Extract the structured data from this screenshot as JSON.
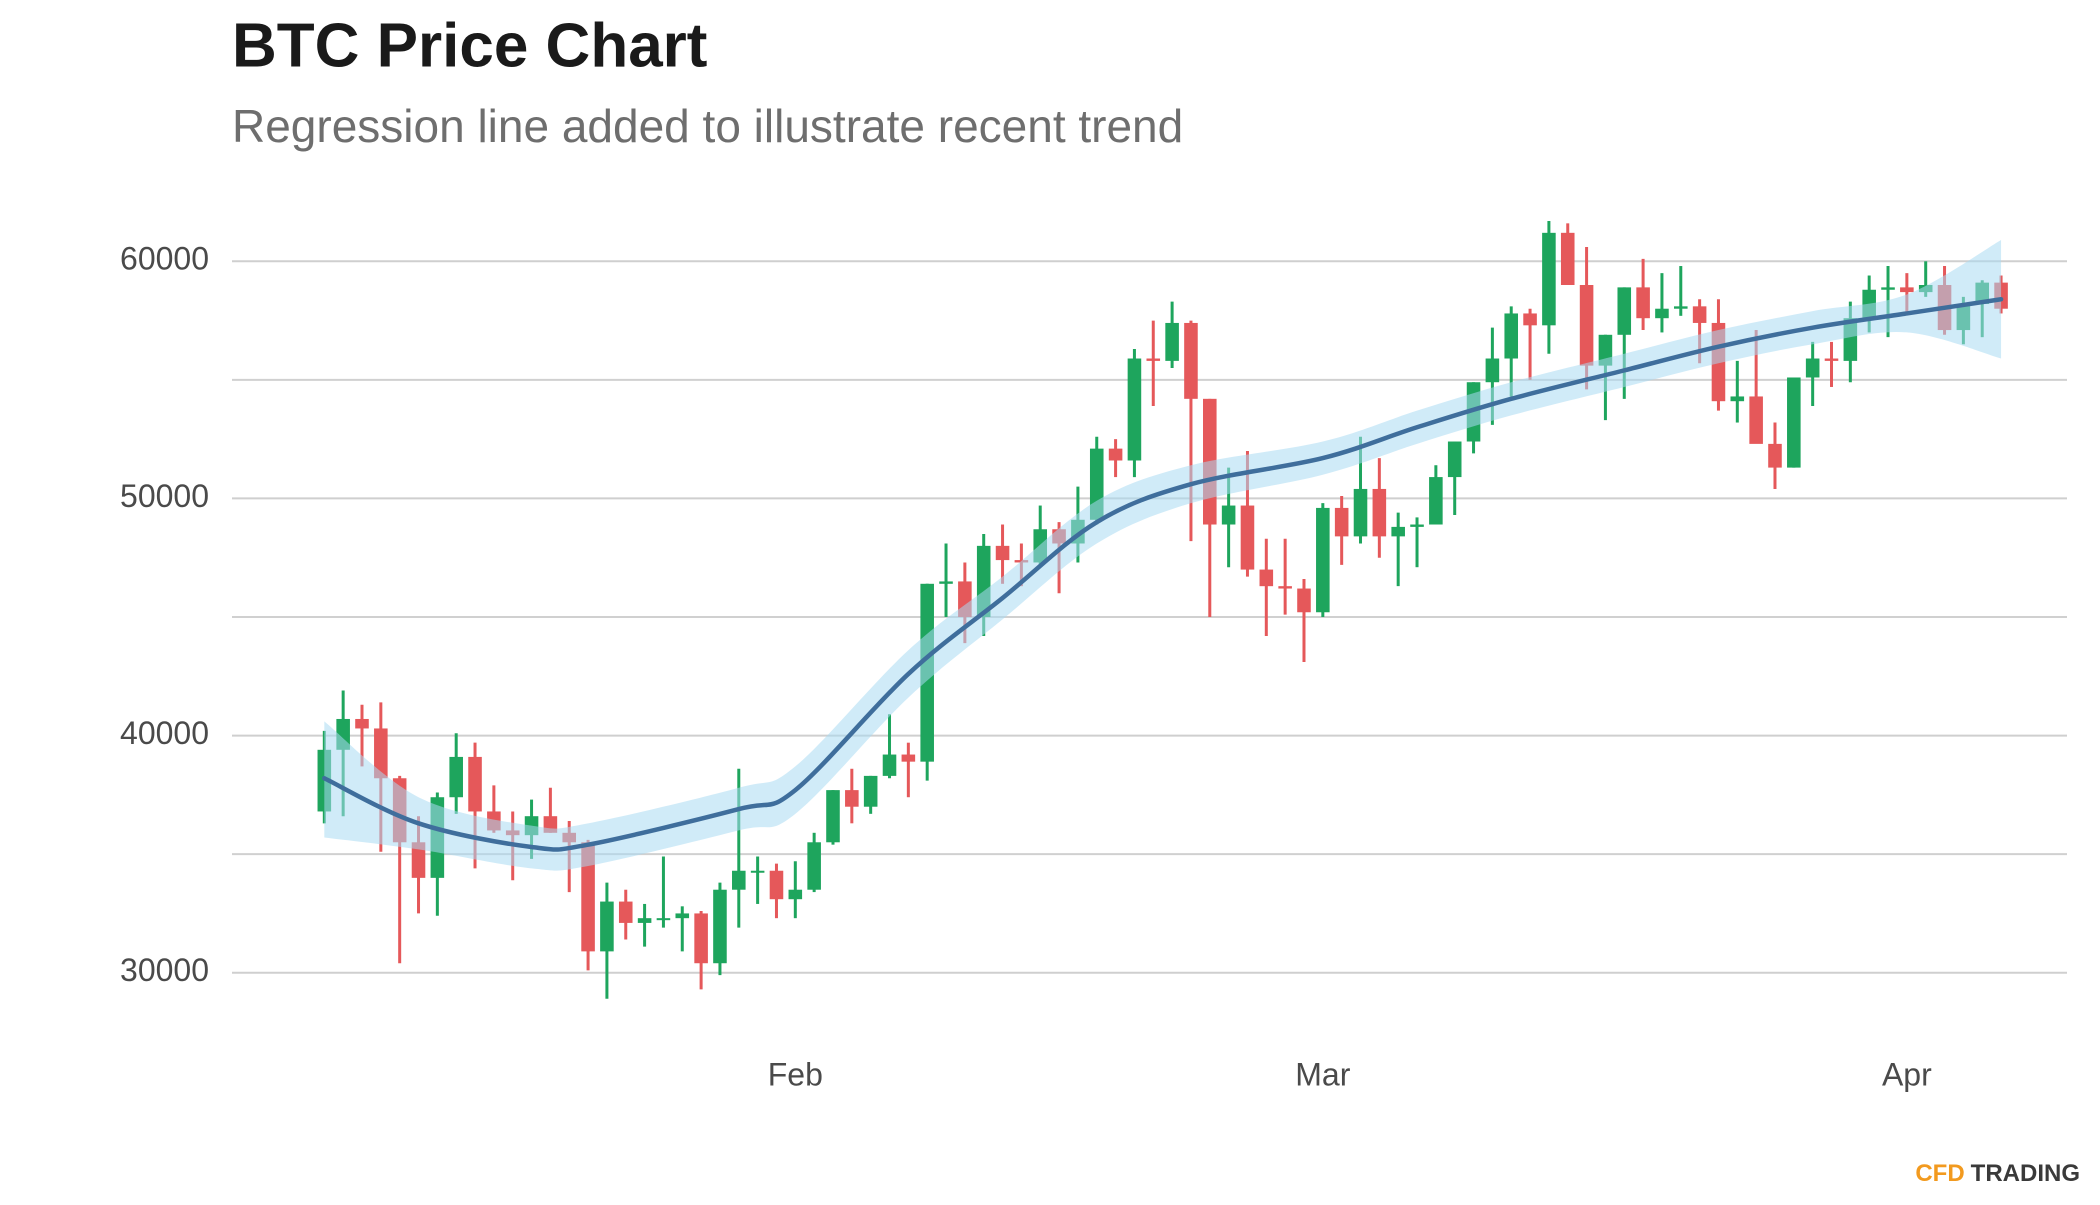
{
  "chart_data": {
    "type": "candlestick",
    "title": "BTC Price Chart",
    "subtitle": "Regression line added to illustrate recent trend",
    "xlim": [
      -4.9,
      92.5
    ],
    "xticks": [
      {
        "value": 25,
        "label": "Feb"
      },
      {
        "value": 53,
        "label": "Mar"
      },
      {
        "value": 84,
        "label": "Apr"
      }
    ],
    "ylim": [
      27500,
      62500
    ],
    "yticks": [
      30000,
      40000,
      50000,
      60000
    ],
    "minor_yticks": [
      35000,
      45000,
      55000
    ],
    "grid": true,
    "up_color": "#1ea55d",
    "down_color": "#e5585a",
    "candles": {
      "open": [
        36800,
        39400,
        40700,
        40300,
        38200,
        35500,
        34000,
        37400,
        39100,
        36800,
        36000,
        35800,
        36600,
        35900,
        35500,
        30900,
        33000,
        32100,
        32300,
        32300,
        32500,
        30400,
        33500,
        34300,
        34300,
        33100,
        33500,
        35500,
        37700,
        37000,
        38300,
        39200,
        38900,
        46400,
        46500,
        45000,
        48000,
        47400,
        47300,
        48700,
        48100,
        49100,
        52100,
        51600,
        55900,
        55800,
        57400,
        54200,
        48900,
        49700,
        47000,
        46300,
        46200,
        45200,
        49600,
        48400,
        50400,
        48400,
        48800,
        48900,
        50900,
        52400,
        54900,
        55900,
        57800,
        57300,
        61200,
        59000,
        55600,
        56900,
        58900,
        57600,
        58000,
        58100,
        57400,
        54100,
        54300,
        52300,
        51300,
        55100,
        55900,
        55800,
        57600,
        58800,
        58900,
        58700,
        59000,
        57100,
        58200,
        59100
      ],
      "high": [
        40200,
        41900,
        41300,
        41400,
        38300,
        36600,
        37600,
        40100,
        39700,
        37900,
        36800,
        37300,
        37800,
        36400,
        35600,
        33800,
        33500,
        32900,
        34900,
        32800,
        32600,
        33800,
        38600,
        34900,
        34600,
        34700,
        35900,
        37700,
        38600,
        38300,
        40900,
        39700,
        46400,
        48100,
        47300,
        48500,
        48900,
        48100,
        49700,
        49000,
        50500,
        52600,
        52500,
        56300,
        57500,
        58300,
        57500,
        54200,
        51300,
        52000,
        48300,
        48300,
        46600,
        49800,
        50100,
        52600,
        51700,
        49400,
        49200,
        51400,
        52400,
        54900,
        57200,
        58100,
        58000,
        61700,
        61600,
        60600,
        56900,
        58900,
        60100,
        59500,
        59800,
        58400,
        58400,
        55800,
        57100,
        53200,
        55100,
        56600,
        56600,
        58300,
        59400,
        59800,
        59500,
        60000,
        59800,
        58500,
        59200,
        59400
      ],
      "low": [
        36300,
        36600,
        38700,
        35100,
        30400,
        32500,
        32400,
        36700,
        34400,
        35900,
        33900,
        34800,
        35900,
        33400,
        30100,
        28900,
        31400,
        31100,
        31900,
        30900,
        29300,
        29900,
        31900,
        32900,
        32300,
        32300,
        33400,
        35400,
        36300,
        36700,
        38200,
        37400,
        38100,
        45000,
        43900,
        44200,
        46400,
        46300,
        47100,
        46000,
        47300,
        48900,
        50900,
        50900,
        53900,
        55500,
        48200,
        45000,
        47100,
        46700,
        44200,
        45100,
        43100,
        45000,
        47200,
        48100,
        47500,
        46300,
        47100,
        48900,
        49300,
        51900,
        53100,
        54300,
        55000,
        56100,
        59000,
        54600,
        53300,
        54200,
        57100,
        57000,
        57700,
        55700,
        53700,
        53200,
        52900,
        50400,
        51300,
        53900,
        54700,
        54900,
        57000,
        56800,
        57800,
        58500,
        56900,
        56500,
        56800,
        57800
      ],
      "close": [
        39400,
        40700,
        40300,
        38200,
        35500,
        34000,
        37400,
        39100,
        36800,
        36000,
        35800,
        36600,
        35900,
        35500,
        30900,
        33000,
        32100,
        32300,
        32300,
        32500,
        30400,
        33500,
        34300,
        34300,
        33100,
        33500,
        35500,
        37700,
        37000,
        38300,
        39200,
        38900,
        46400,
        46500,
        45000,
        48000,
        47400,
        47300,
        48700,
        48100,
        49100,
        52100,
        51600,
        55900,
        55800,
        57400,
        54200,
        48900,
        49700,
        47000,
        46300,
        46200,
        45200,
        49600,
        48400,
        50400,
        48400,
        48800,
        48900,
        50900,
        52400,
        54900,
        55900,
        57800,
        57300,
        61200,
        59000,
        55600,
        56900,
        58900,
        57600,
        58000,
        58100,
        57400,
        54100,
        54300,
        52300,
        51300,
        55100,
        55900,
        55800,
        57600,
        58800,
        58900,
        58700,
        59000,
        57100,
        58200,
        59100,
        58000
      ]
    },
    "regression": {
      "color": "#3f6e9c",
      "band_color": "#a9daf3",
      "x": [
        0,
        5,
        11,
        14,
        22,
        25,
        31,
        36,
        41,
        46,
        53,
        58,
        63,
        69,
        74,
        79,
        84,
        89
      ],
      "values": [
        38200,
        36300,
        35300,
        35400,
        36900,
        37700,
        42600,
        45800,
        49000,
        50600,
        51700,
        53000,
        54200,
        55400,
        56400,
        57200,
        57800,
        58400
      ],
      "lower": [
        35700,
        35200,
        34400,
        34500,
        36000,
        36700,
        41600,
        44900,
        48100,
        49800,
        51000,
        52300,
        53500,
        54700,
        55700,
        56500,
        57000,
        55900
      ],
      "upper": [
        40600,
        37400,
        36200,
        36300,
        37800,
        38700,
        43600,
        46700,
        49900,
        51400,
        52400,
        53700,
        54900,
        56100,
        57100,
        57900,
        58600,
        60900
      ]
    },
    "brand": {
      "part1": "CFD",
      "part2": "TRADING"
    }
  }
}
